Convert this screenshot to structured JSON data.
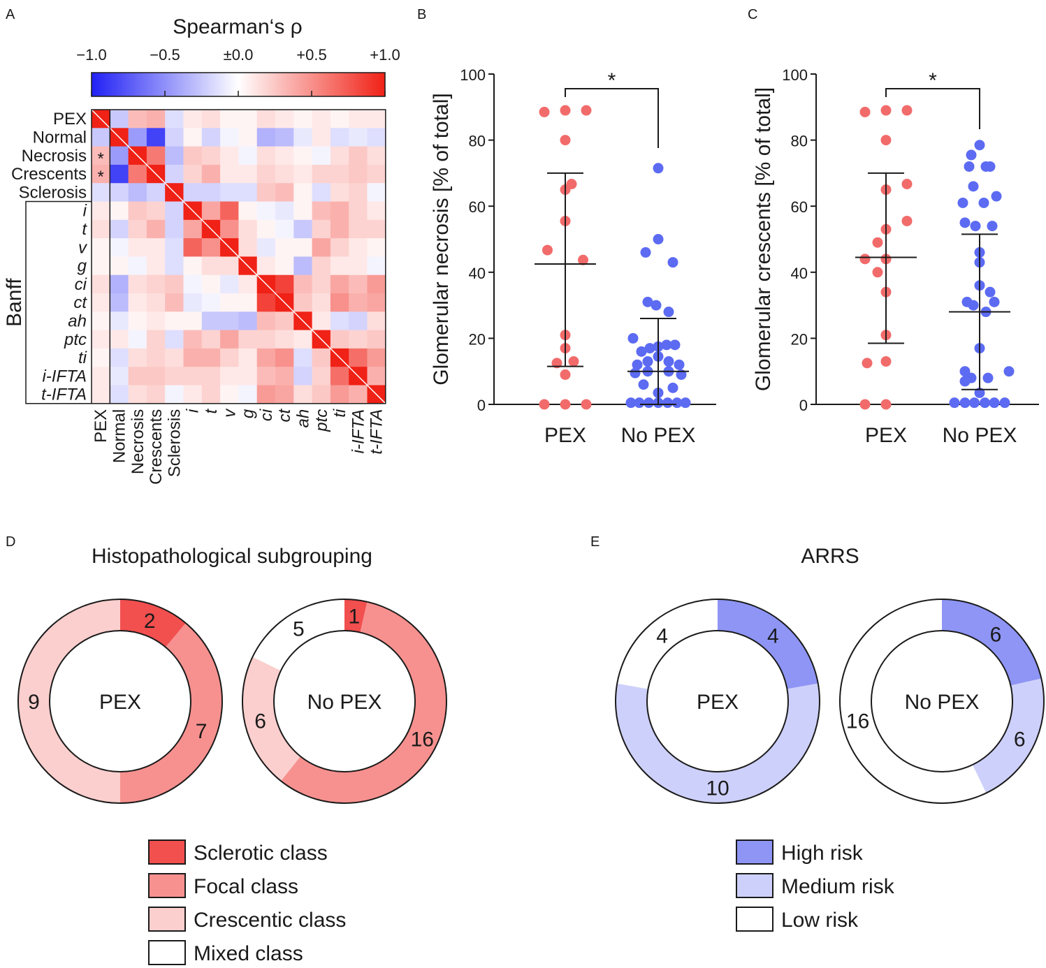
{
  "panels": {
    "A": "A",
    "B": "B",
    "C": "C",
    "D": "D",
    "E": "E"
  },
  "chart_data": [
    {
      "type": "heatmap",
      "panel": "A",
      "title": "Spearman‘s ρ",
      "colorbar_ticks": [
        "−1.0",
        "−0.5",
        "±0.0",
        "+0.5",
        "+1.0"
      ],
      "vmin": -1.0,
      "vmax": 1.0,
      "group_label": "Banff",
      "labels": [
        "PEX",
        "Normal",
        "Necrosis",
        "Crescents",
        "Sclerosis",
        "i",
        "t",
        "v",
        "g",
        "ci",
        "ct",
        "ah",
        "ptc",
        "ti",
        "i-IFTA",
        "t-IFTA"
      ],
      "italic_from_index": 5,
      "significance_marks": [
        {
          "row": 2,
          "col": 0,
          "text": "*"
        },
        {
          "row": 3,
          "col": 0,
          "text": "*"
        }
      ],
      "matrix": [
        [
          1.0,
          -0.25,
          0.3,
          0.35,
          -0.15,
          0.1,
          0.15,
          0.05,
          0.05,
          0.15,
          0.1,
          0.05,
          0.1,
          0.05,
          0.1,
          0.1
        ],
        [
          -0.25,
          1.0,
          -0.45,
          -0.85,
          -0.2,
          0.05,
          -0.2,
          -0.05,
          0.05,
          -0.35,
          -0.3,
          -0.1,
          0.1,
          -0.15,
          -0.1,
          -0.15
        ],
        [
          0.3,
          -0.45,
          1.0,
          0.6,
          -0.3,
          0.25,
          0.2,
          0.1,
          -0.05,
          0.15,
          0.1,
          0.05,
          -0.05,
          0.15,
          0.25,
          0.15
        ],
        [
          0.35,
          -0.85,
          0.6,
          1.0,
          -0.2,
          0.2,
          0.35,
          0.1,
          0.1,
          0.2,
          0.15,
          0.1,
          0.2,
          0.2,
          0.25,
          0.2
        ],
        [
          -0.15,
          -0.2,
          -0.3,
          -0.2,
          1.0,
          -0.2,
          -0.2,
          -0.15,
          -0.15,
          0.25,
          0.3,
          0.05,
          -0.15,
          0.15,
          0.2,
          -0.05
        ],
        [
          0.1,
          0.05,
          0.25,
          0.2,
          -0.2,
          1.0,
          0.4,
          0.7,
          0.05,
          -0.05,
          -0.1,
          0.05,
          0.3,
          0.35,
          0.2,
          0.1
        ],
        [
          0.15,
          -0.2,
          0.2,
          0.35,
          -0.2,
          0.4,
          1.0,
          0.5,
          0.15,
          0.05,
          -0.05,
          -0.25,
          0.2,
          0.35,
          0.2,
          0.2
        ],
        [
          0.05,
          -0.05,
          0.1,
          0.1,
          -0.15,
          0.7,
          0.5,
          1.0,
          0.15,
          -0.1,
          0.05,
          0.05,
          0.4,
          0.2,
          0.1,
          0.05
        ],
        [
          0.05,
          0.05,
          -0.05,
          0.1,
          -0.15,
          0.05,
          0.15,
          0.15,
          1.0,
          0.1,
          0.05,
          -0.3,
          0.2,
          0.1,
          0.1,
          -0.05
        ],
        [
          0.15,
          -0.35,
          0.15,
          0.2,
          0.25,
          -0.05,
          0.05,
          -0.1,
          0.1,
          1.0,
          0.85,
          0.3,
          0.2,
          0.4,
          0.3,
          0.45
        ],
        [
          0.1,
          -0.3,
          0.1,
          0.15,
          0.3,
          -0.1,
          -0.05,
          0.05,
          0.05,
          0.85,
          1.0,
          0.25,
          0.15,
          0.5,
          0.35,
          0.4
        ],
        [
          0.05,
          -0.1,
          0.05,
          0.1,
          0.05,
          0.05,
          -0.25,
          -0.25,
          -0.3,
          0.3,
          0.25,
          1.0,
          0.1,
          -0.15,
          -0.2,
          0.15
        ],
        [
          0.1,
          0.1,
          -0.05,
          0.2,
          -0.15,
          0.3,
          0.2,
          0.4,
          0.2,
          0.2,
          0.15,
          0.1,
          1.0,
          0.25,
          0.2,
          0.25
        ],
        [
          0.05,
          -0.15,
          0.15,
          0.2,
          0.15,
          0.35,
          0.35,
          0.2,
          0.1,
          0.4,
          0.5,
          -0.15,
          0.25,
          1.0,
          0.65,
          0.45
        ],
        [
          0.1,
          -0.1,
          0.25,
          0.25,
          0.2,
          0.2,
          0.2,
          0.1,
          0.1,
          0.3,
          0.35,
          -0.2,
          0.2,
          0.65,
          1.0,
          0.35
        ],
        [
          0.1,
          -0.15,
          0.15,
          0.2,
          -0.05,
          0.1,
          0.2,
          0.05,
          -0.05,
          0.45,
          0.4,
          0.15,
          0.25,
          0.45,
          0.35,
          1.0
        ]
      ]
    },
    {
      "type": "scatter",
      "panel": "B",
      "ylabel": "Glomerular necrosis [% of total]",
      "categories": [
        "PEX",
        "No PEX"
      ],
      "ylim": [
        0,
        100
      ],
      "yticks": [
        0,
        20,
        40,
        60,
        80,
        100
      ],
      "significance": "*",
      "series": [
        {
          "name": "PEX",
          "color": "#f26b6b",
          "median": 42.5,
          "q1": 11.5,
          "q3": 70,
          "points": [
            [
              -1,
              88.5
            ],
            [
              0,
              89
            ],
            [
              1,
              89
            ],
            [
              0,
              80
            ],
            [
              0.3,
              66.7
            ],
            [
              0,
              65
            ],
            [
              0,
              55.5
            ],
            [
              -0.85,
              46.7
            ],
            [
              0.85,
              43.7
            ],
            [
              0,
              21
            ],
            [
              0,
              17
            ],
            [
              -0.4,
              12.5
            ],
            [
              0.4,
              13
            ],
            [
              0,
              9
            ],
            [
              -1,
              0
            ],
            [
              0,
              0
            ],
            [
              1,
              0
            ]
          ]
        },
        {
          "name": "No PEX",
          "color": "#5c6bf2",
          "median": 10,
          "q1": 0,
          "q3": 26,
          "points": [
            [
              0,
              71.5
            ],
            [
              0,
              50
            ],
            [
              -0.6,
              46
            ],
            [
              0.7,
              43
            ],
            [
              -0.5,
              31
            ],
            [
              -0.1,
              30
            ],
            [
              0.5,
              28
            ],
            [
              -1.2,
              20
            ],
            [
              -0.8,
              16
            ],
            [
              -0.4,
              17
            ],
            [
              0,
              17.5
            ],
            [
              0.4,
              18
            ],
            [
              0.8,
              18
            ],
            [
              -1.0,
              12
            ],
            [
              -0.5,
              13
            ],
            [
              0,
              14.5
            ],
            [
              0.5,
              13
            ],
            [
              1.0,
              12
            ],
            [
              -1.1,
              9.5
            ],
            [
              -0.5,
              10
            ],
            [
              0.5,
              10
            ],
            [
              1.1,
              9
            ],
            [
              -0.7,
              6
            ],
            [
              0,
              3.5
            ],
            [
              0.7,
              5
            ],
            [
              -1.3,
              0.5
            ],
            [
              -0.9,
              0.5
            ],
            [
              -0.45,
              0.5
            ],
            [
              0,
              0.5
            ],
            [
              0.45,
              0.5
            ],
            [
              0.9,
              0.5
            ],
            [
              1.3,
              0.5
            ]
          ]
        }
      ]
    },
    {
      "type": "scatter",
      "panel": "C",
      "ylabel": "Glomerular crescents [% of total]",
      "categories": [
        "PEX",
        "No PEX"
      ],
      "ylim": [
        0,
        100
      ],
      "yticks": [
        0,
        20,
        40,
        60,
        80,
        100
      ],
      "significance": "*",
      "series": [
        {
          "name": "PEX",
          "color": "#f26b6b",
          "median": 44.5,
          "q1": 18.5,
          "q3": 70,
          "points": [
            [
              -1,
              88.5
            ],
            [
              0,
              89
            ],
            [
              1,
              89
            ],
            [
              0,
              80
            ],
            [
              1,
              66.7
            ],
            [
              0,
              65
            ],
            [
              1,
              55.5
            ],
            [
              0,
              53
            ],
            [
              -0.4,
              49
            ],
            [
              -1,
              44
            ],
            [
              0,
              44
            ],
            [
              -0.4,
              40
            ],
            [
              0,
              34
            ],
            [
              0,
              21
            ],
            [
              -0.9,
              12.5
            ],
            [
              0,
              13
            ],
            [
              -1,
              0
            ],
            [
              0,
              0
            ]
          ]
        },
        {
          "name": "No PEX",
          "color": "#5c6bf2",
          "median": 28,
          "q1": 4.5,
          "q3": 51.5,
          "points": [
            [
              0,
              78.5
            ],
            [
              -0.4,
              75.5
            ],
            [
              0.3,
              72
            ],
            [
              -0.5,
              72
            ],
            [
              0.5,
              72
            ],
            [
              -0.3,
              66
            ],
            [
              0.8,
              63
            ],
            [
              -0.8,
              61
            ],
            [
              0.2,
              61
            ],
            [
              -0.7,
              55
            ],
            [
              -0.2,
              54
            ],
            [
              0.6,
              54
            ],
            [
              0,
              46
            ],
            [
              0,
              43
            ],
            [
              0,
              36
            ],
            [
              0.5,
              34
            ],
            [
              -0.6,
              31
            ],
            [
              0.7,
              31
            ],
            [
              -0.3,
              30
            ],
            [
              0.3,
              28
            ],
            [
              0,
              17
            ],
            [
              -0.7,
              10
            ],
            [
              1.4,
              10
            ],
            [
              -0.4,
              8
            ],
            [
              0.4,
              8
            ],
            [
              -0.7,
              7
            ],
            [
              0,
              3.5
            ],
            [
              -1.2,
              0.5
            ],
            [
              -0.7,
              0.5
            ],
            [
              -0.25,
              0.5
            ],
            [
              0.25,
              0.5
            ],
            [
              0.7,
              0.5
            ],
            [
              1.2,
              0.5
            ]
          ]
        }
      ]
    },
    {
      "type": "pie",
      "panel": "D",
      "title": "Histopathological subgrouping",
      "legend": [
        {
          "label": "Sclerotic class",
          "color": "#f24f4f"
        },
        {
          "label": "Focal class",
          "color": "#f7918f"
        },
        {
          "label": "Crescentic class",
          "color": "#fbcfce"
        },
        {
          "label": "Mixed class",
          "color": "#ffffff"
        }
      ],
      "donuts": [
        {
          "center_label": "PEX",
          "slices": [
            {
              "class": "Sclerotic class",
              "value": 2,
              "label": "2"
            },
            {
              "class": "Focal class",
              "value": 7,
              "label": "7"
            },
            {
              "class": "Crescentic class",
              "value": 9,
              "label": "9"
            }
          ]
        },
        {
          "center_label": "No PEX",
          "slices": [
            {
              "class": "Sclerotic class",
              "value": 1,
              "label": "1"
            },
            {
              "class": "Focal class",
              "value": 16,
              "label": "16"
            },
            {
              "class": "Crescentic class",
              "value": 6,
              "label": "6"
            },
            {
              "class": "Mixed class",
              "value": 5,
              "label": "5"
            }
          ]
        }
      ]
    },
    {
      "type": "pie",
      "panel": "E",
      "title": "ARRS",
      "legend": [
        {
          "label": "High risk",
          "color": "#8e95f5"
        },
        {
          "label": "Medium risk",
          "color": "#cdd0fa"
        },
        {
          "label": "Low risk",
          "color": "#ffffff"
        }
      ],
      "donuts": [
        {
          "center_label": "PEX",
          "slices": [
            {
              "class": "High risk",
              "value": 4,
              "label": "4"
            },
            {
              "class": "Medium risk",
              "value": 10,
              "label": "10"
            },
            {
              "class": "Low risk",
              "value": 4,
              "label": "4"
            }
          ]
        },
        {
          "center_label": "No PEX",
          "slices": [
            {
              "class": "High risk",
              "value": 6,
              "label": "6"
            },
            {
              "class": "Medium risk",
              "value": 6,
              "label": "6"
            },
            {
              "class": "Low risk",
              "value": 16,
              "label": "16"
            }
          ]
        }
      ]
    }
  ]
}
